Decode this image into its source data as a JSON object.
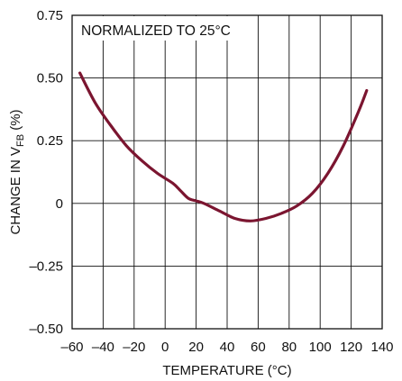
{
  "chart_data": {
    "type": "line",
    "xlabel": "TEMPERATURE (°C)",
    "ylabel": {
      "pre": "CHANGE IN V",
      "sub": "FB",
      "post": " (%)"
    },
    "annotation": "NORMALIZED TO 25°C",
    "xlim": [
      -60,
      140
    ],
    "ylim": [
      -0.5,
      0.75
    ],
    "x_ticks": [
      {
        "value": -60,
        "label": "–60"
      },
      {
        "value": -40,
        "label": "–40"
      },
      {
        "value": -20,
        "label": "–20"
      },
      {
        "value": 0,
        "label": "0"
      },
      {
        "value": 20,
        "label": "20"
      },
      {
        "value": 40,
        "label": "40"
      },
      {
        "value": 60,
        "label": "60"
      },
      {
        "value": 80,
        "label": "80"
      },
      {
        "value": 100,
        "label": "100"
      },
      {
        "value": 120,
        "label": "120"
      },
      {
        "value": 140,
        "label": "140"
      }
    ],
    "y_ticks": [
      {
        "value": 0.75,
        "label": "0.75"
      },
      {
        "value": 0.5,
        "label": "0.50"
      },
      {
        "value": 0.25,
        "label": "0.25"
      },
      {
        "value": 0,
        "label": "0"
      },
      {
        "value": -0.25,
        "label": "–0.25"
      },
      {
        "value": -0.5,
        "label": "–0.50"
      }
    ],
    "grid": true,
    "series": [
      {
        "color": "#7b1530",
        "x": [
          -55,
          -45,
          -35,
          -25,
          -15,
          -5,
          5,
          10,
          15,
          20,
          25,
          35,
          45,
          55,
          65,
          75,
          85,
          95,
          105,
          115,
          125,
          130
        ],
        "y": [
          0.52,
          0.4,
          0.31,
          0.23,
          0.17,
          0.12,
          0.08,
          0.05,
          0.02,
          0.01,
          0.0,
          -0.03,
          -0.06,
          -0.07,
          -0.06,
          -0.04,
          -0.01,
          0.04,
          0.12,
          0.23,
          0.37,
          0.45
        ]
      }
    ]
  }
}
